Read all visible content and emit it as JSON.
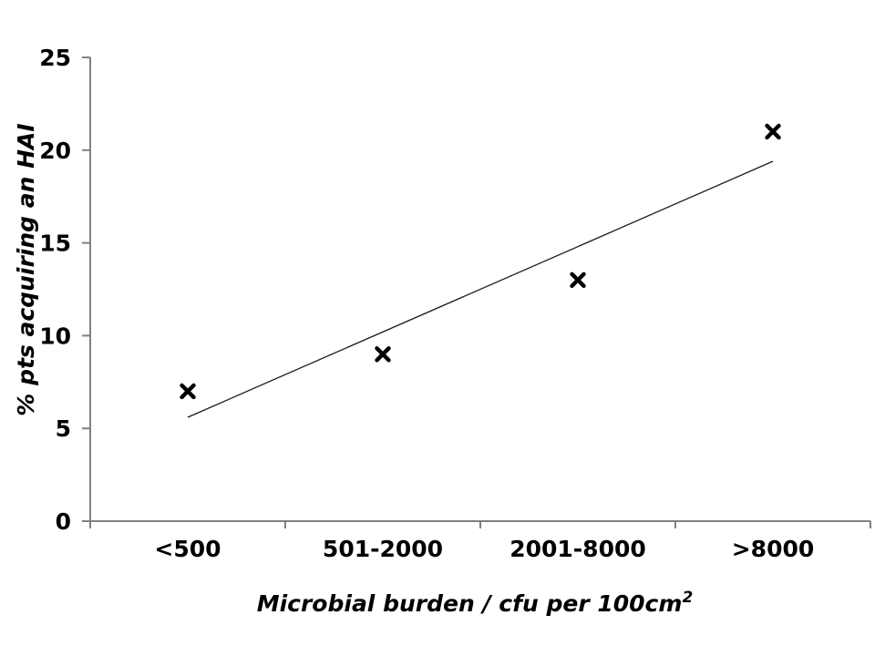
{
  "chart_data": {
    "type": "scatter",
    "title": "",
    "categories": [
      "<500",
      "501-2000",
      "2001-8000",
      ">8000"
    ],
    "series": [
      {
        "name": "% pts acquiring an HAI",
        "values": [
          7,
          9,
          13,
          21
        ]
      }
    ],
    "trendline": {
      "slope": 4.6,
      "intercept": 1,
      "x_start_index": 1,
      "x_end_index": 4,
      "y_start": 5.6,
      "y_end": 19.4
    },
    "xlabel": "Microbial burden / cfu per 100cm",
    "xlabel_superscript": "2",
    "ylabel": "% pts acquiring an HAI",
    "ylim": [
      0,
      25
    ],
    "yticks": [
      0,
      5,
      10,
      15,
      20,
      25
    ],
    "x_divisions": 4,
    "grid": false,
    "legend": "none",
    "marker": "x",
    "colors": {
      "axis": "#808080",
      "marker": "#000000",
      "trendline": "#1a1a1a",
      "text": "#000000",
      "background": "#ffffff"
    }
  }
}
